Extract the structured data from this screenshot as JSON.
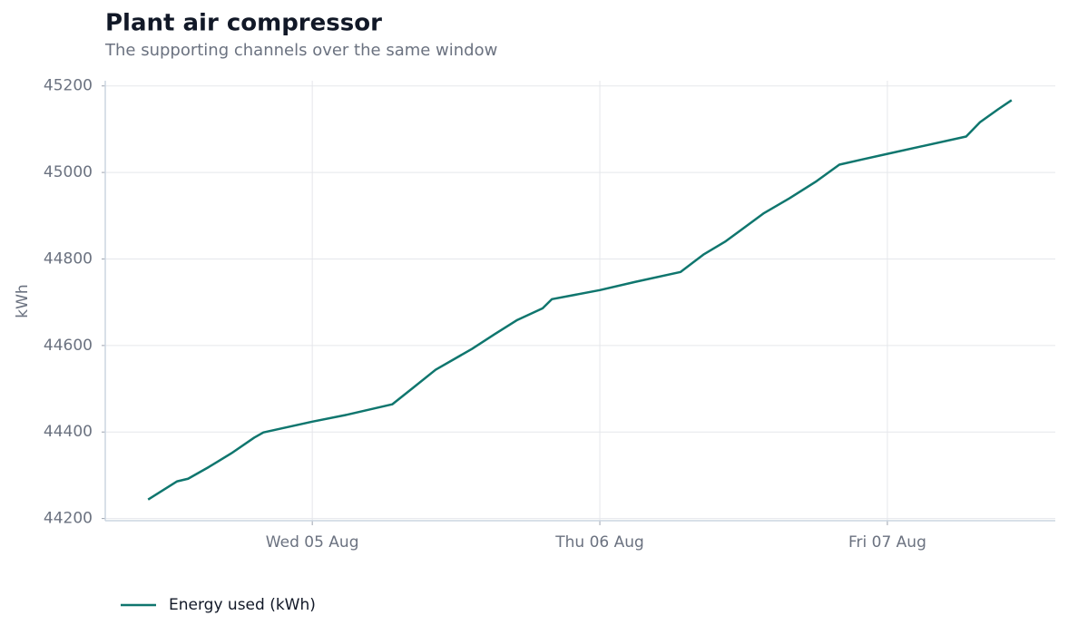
{
  "chart_data": {
    "type": "line",
    "title": "Plant air compressor",
    "subtitle": "The supporting channels over the same window",
    "y_label": "kWh",
    "x": [
      -0.571,
      -0.47,
      -0.432,
      -0.36,
      -0.281,
      -0.202,
      -0.17,
      0,
      0.114,
      0.278,
      0.35,
      0.429,
      0.555,
      0.634,
      0.713,
      0.801,
      0.833,
      1.0,
      1.123,
      1.281,
      1.36,
      1.438,
      1.571,
      1.659,
      1.754,
      1.833,
      1.912,
      2.0,
      2.274,
      2.322,
      2.385,
      2.432
    ],
    "series": [
      {
        "name": "Energy used (kWh)",
        "color": "#0f766e",
        "values": [
          44244,
          44286,
          44292,
          44319,
          44351,
          44387,
          44399,
          44424,
          44439,
          44464,
          44502,
          44544,
          44592,
          44626,
          44659,
          44686,
          44707,
          44728,
          44747,
          44770,
          44810,
          44841,
          44906,
          44940,
          44980,
          45018,
          45030,
          45043,
          45083,
          45116,
          45146,
          45167
        ]
      }
    ],
    "xlim": [
      -0.72,
      2.584
    ],
    "xticks": [
      {
        "value": 0,
        "label": "Wed 05 Aug"
      },
      {
        "value": 1,
        "label": "Thu 06 Aug"
      },
      {
        "value": 2,
        "label": "Fri 07 Aug"
      }
    ],
    "ylim": [
      44195,
      45212
    ],
    "yticks": [
      44200,
      44400,
      44600,
      44800,
      45000,
      45200
    ],
    "grid": true,
    "legend": "bottom-left"
  }
}
